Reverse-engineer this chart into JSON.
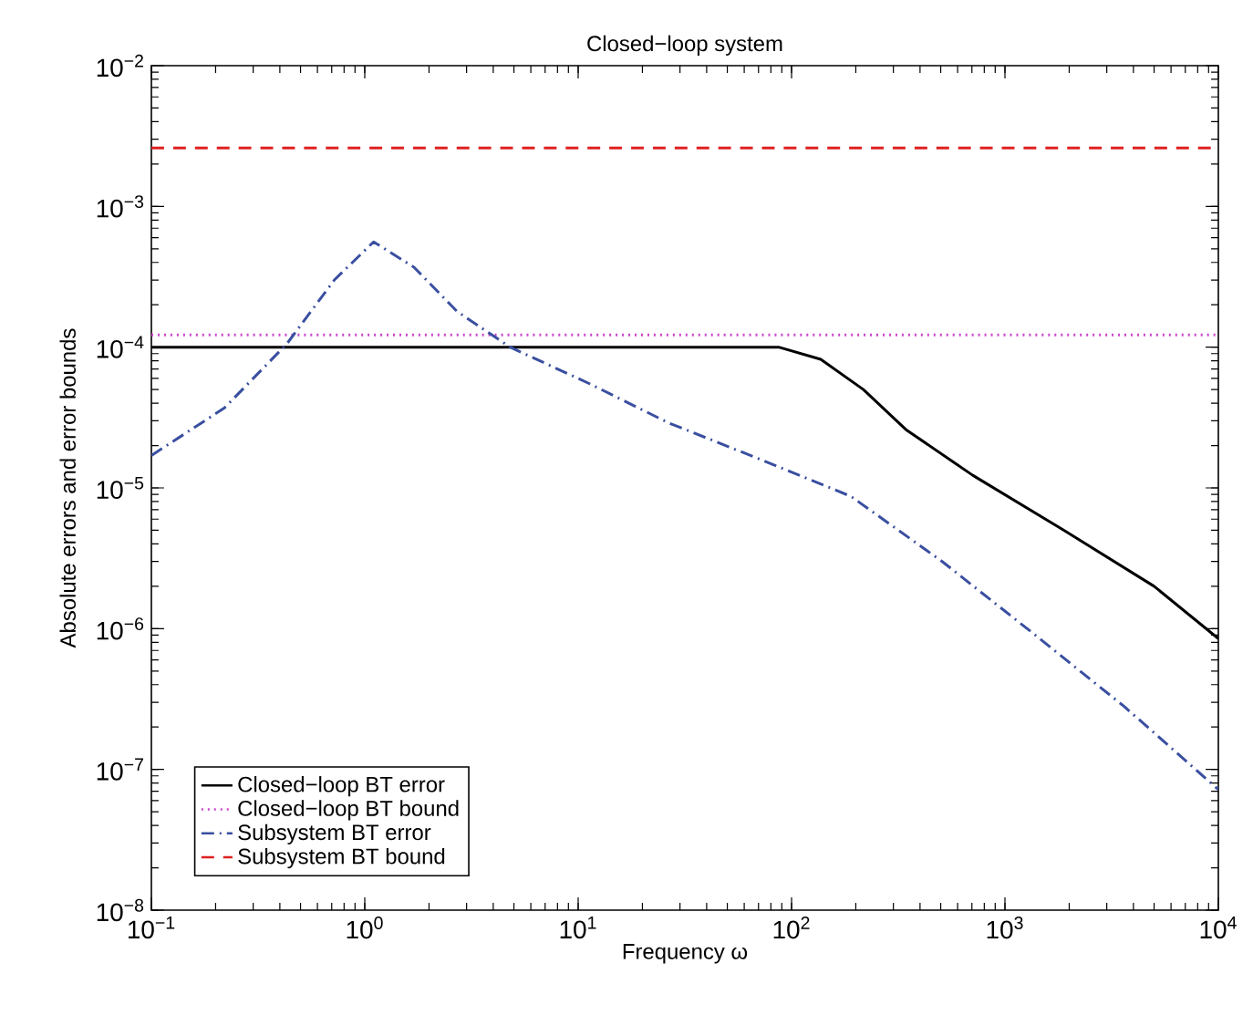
{
  "chart_data": {
    "type": "line",
    "title": "Closed−loop system",
    "xlabel": "Frequency ω",
    "ylabel": "Absolute errors and error bounds",
    "log": "xy",
    "xlim": [
      0.1,
      10000
    ],
    "ylim": [
      1e-08,
      0.01
    ],
    "xticks": [
      {
        "value": 0.1,
        "label": "10$^{−1}$"
      },
      {
        "value": 1,
        "label": "10$^{0}$"
      },
      {
        "value": 10,
        "label": "10$^{1}$"
      },
      {
        "value": 100,
        "label": "10$^{2}$"
      },
      {
        "value": 1000,
        "label": "10$^{3}$"
      },
      {
        "value": 10000,
        "label": "10$^{4}$"
      }
    ],
    "yticks": [
      {
        "value": 1e-08,
        "label": "10$^{−8}$"
      },
      {
        "value": 1e-07,
        "label": "10$^{−7}$"
      },
      {
        "value": 1e-06,
        "label": "10$^{−6}$"
      },
      {
        "value": 1e-05,
        "label": "10$^{−5}$"
      },
      {
        "value": 0.0001,
        "label": "10$^{−4}$"
      },
      {
        "value": 0.001,
        "label": "10$^{−3}$"
      },
      {
        "value": 0.01,
        "label": "10$^{−2}$"
      }
    ],
    "grid": false,
    "legend": "bottom left",
    "series": [
      {
        "name": "Closed−loop BT error",
        "color": "#000000",
        "line_style": "solid",
        "x": [
          0.1,
          87,
          137,
          217,
          343,
          706,
          1890,
          5000,
          10000
        ],
        "values": [
          0.0001,
          0.0001,
          8.2e-05,
          5e-05,
          2.6e-05,
          1.23e-05,
          5e-06,
          2e-06,
          8.5e-07
        ]
      },
      {
        "name": "Closed−loop BT bound",
        "color": "#cc44cc",
        "line_style": "dotted",
        "x": [
          0.1,
          10000
        ],
        "values": [
          0.000122,
          0.000122
        ]
      },
      {
        "name": "Subsystem BT error",
        "color": "#3a4fa0",
        "line_style": "dashdot",
        "x": [
          0.1,
          0.22,
          0.43,
          0.72,
          1.1,
          1.7,
          2.7,
          4.8,
          11.3,
          26.5,
          71,
          190,
          508,
          1350,
          3620,
          10000
        ],
        "values": [
          1.7e-05,
          3.7e-05,
          0.000105,
          0.0003,
          0.00056,
          0.00037,
          0.00018,
          0.0001,
          5.5e-05,
          2.9e-05,
          1.6e-05,
          8.7e-06,
          3e-06,
          9.3e-07,
          2.8e-07,
          7.2e-08
        ]
      },
      {
        "name": "Subsystem BT bound",
        "color": "#e02020",
        "line_style": "dashed",
        "x": [
          0.1,
          10000
        ],
        "values": [
          0.0026,
          0.0026
        ]
      }
    ]
  }
}
